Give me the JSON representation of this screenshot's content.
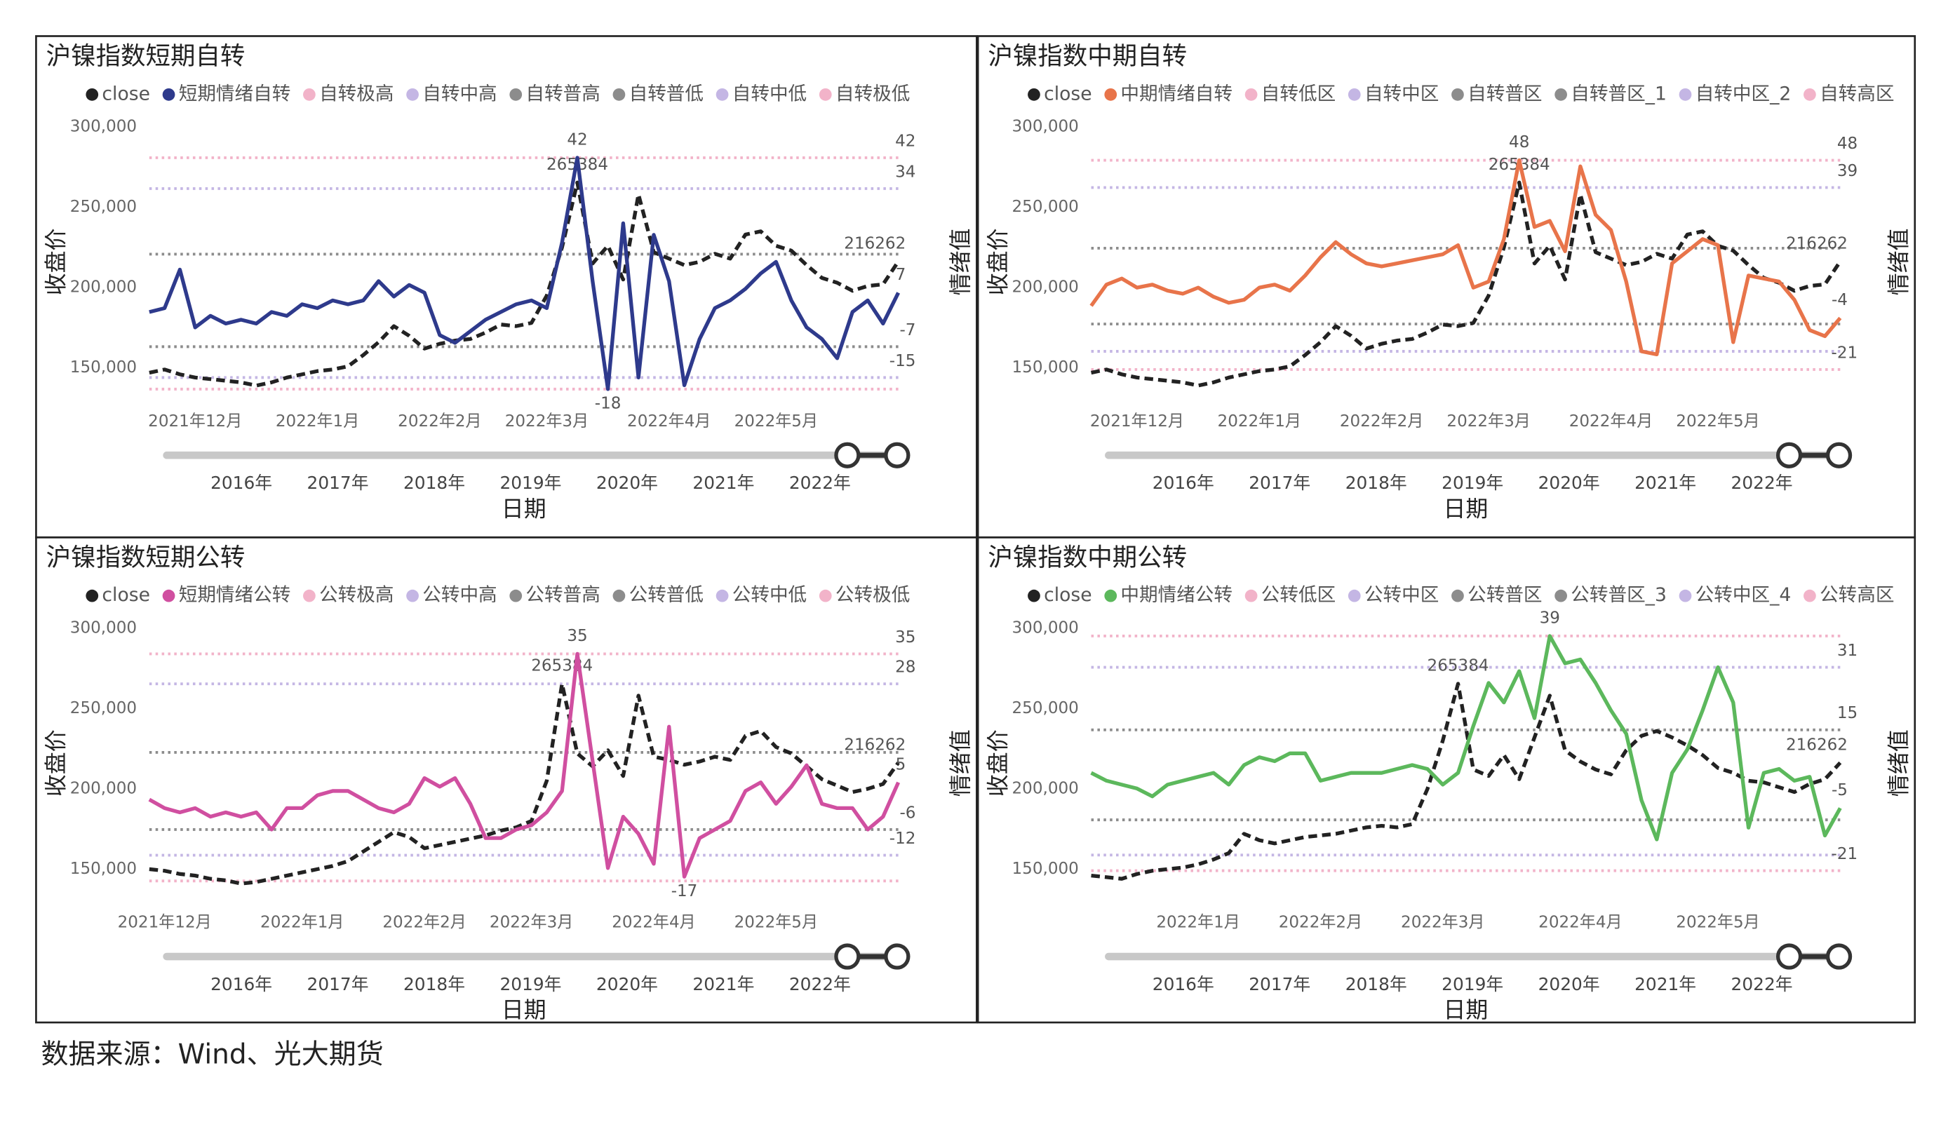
{
  "source": "数据来源：Wind、光大期货",
  "chart_data": [
    {
      "type": "line",
      "title": "沪镍指数短期自转",
      "y_label": "收盘价",
      "y2_label": "情绪值",
      "x_label": "日期",
      "categories": [
        null,
        null,
        null,
        "2021年12月",
        null,
        null,
        null,
        null,
        null,
        null,
        null,
        "2022年1月",
        null,
        null,
        null,
        null,
        null,
        null,
        null,
        "2022年2月",
        null,
        null,
        null,
        null,
        null,
        null,
        "2022年3月",
        null,
        null,
        null,
        null,
        null,
        null,
        null,
        "2022年4月",
        null,
        null,
        null,
        null,
        null,
        null,
        "2022年5月",
        null,
        null,
        null,
        null,
        null,
        null,
        null,
        null
      ],
      "ylim": [
        132000,
        300000
      ],
      "yticks": [
        {
          "value": 150000,
          "label": "150,000"
        },
        {
          "value": 200000,
          "label": "200,000"
        },
        {
          "value": 250000,
          "label": "250,000"
        },
        {
          "value": 300000,
          "label": "300,000"
        }
      ],
      "y2lim": [
        -20,
        50
      ],
      "series": [
        {
          "name": "close",
          "color": "#222222",
          "style": "dashed",
          "axis": "y",
          "label_points": [
            "max",
            "last"
          ],
          "values": [
            147000,
            149000,
            146000,
            144000,
            143000,
            142000,
            141000,
            139000,
            141000,
            144000,
            146000,
            148000,
            149000,
            151000,
            158000,
            166000,
            176000,
            170000,
            162000,
            165000,
            167000,
            168000,
            172000,
            177000,
            176000,
            178000,
            195000,
            225000,
            265384,
            215000,
            226000,
            205000,
            258000,
            222000,
            218000,
            214000,
            216000,
            221000,
            218000,
            233000,
            235000,
            226000,
            223000,
            214000,
            206000,
            203000,
            198000,
            201000,
            202000,
            216262
          ]
        },
        {
          "name": "短期情绪自转",
          "color": "#2e3a8c",
          "style": "solid",
          "axis": "y2",
          "label_points": [
            "max",
            "min",
            "last"
          ],
          "values": [
            2,
            3,
            13,
            -2,
            1,
            -1,
            0,
            -1,
            2,
            1,
            4,
            3,
            5,
            4,
            5,
            10,
            6,
            9,
            7,
            -4,
            -6,
            -3,
            0,
            2,
            4,
            5,
            3,
            20,
            42,
            10,
            -18,
            25,
            -15,
            22,
            10,
            -17,
            -5,
            3,
            5,
            8,
            12,
            15,
            5,
            -2,
            -5,
            -10,
            2,
            5,
            -1,
            7
          ]
        }
      ],
      "reference_lines": [
        {
          "name": "自转极高",
          "color": "#f2b3c9",
          "value": 42,
          "axis": "y2",
          "show_label": true
        },
        {
          "name": "自转中高",
          "color": "#c4b6e4",
          "value": 34,
          "axis": "y2",
          "show_label": true
        },
        {
          "name": "自转普高",
          "color": "#8c8c8c",
          "value": 17,
          "axis": "y2",
          "show_label": false
        },
        {
          "name": "自转普低",
          "color": "#8c8c8c",
          "value": -7,
          "axis": "y2",
          "show_label": true
        },
        {
          "name": "自转中低",
          "color": "#c4b6e4",
          "value": -15,
          "axis": "y2",
          "show_label": true
        },
        {
          "name": "自转极低",
          "color": "#f2b3c9",
          "value": -18,
          "axis": "y2",
          "show_label": false
        }
      ],
      "slider_labels": [
        "2016年",
        "2017年",
        "2018年",
        "2019年",
        "2020年",
        "2021年",
        "2022年"
      ]
    },
    {
      "type": "line",
      "title": "沪镍指数中期自转",
      "y_label": "收盘价",
      "y2_label": "情绪值",
      "x_label": "日期",
      "categories": [
        null,
        null,
        null,
        "2021年12月",
        null,
        null,
        null,
        null,
        null,
        null,
        null,
        "2022年1月",
        null,
        null,
        null,
        null,
        null,
        null,
        null,
        "2022年2月",
        null,
        null,
        null,
        null,
        null,
        null,
        "2022年3月",
        null,
        null,
        null,
        null,
        null,
        null,
        null,
        "2022年4月",
        null,
        null,
        null,
        null,
        null,
        null,
        "2022年5月",
        null,
        null,
        null,
        null,
        null,
        null,
        null,
        null
      ],
      "ylim": [
        132000,
        300000
      ],
      "yticks": [
        {
          "value": 150000,
          "label": "150,000"
        },
        {
          "value": 200000,
          "label": "200,000"
        },
        {
          "value": 250000,
          "label": "250,000"
        },
        {
          "value": 300000,
          "label": "300,000"
        }
      ],
      "y2lim": [
        -30,
        59
      ],
      "series": [
        {
          "name": "close",
          "color": "#222222",
          "style": "dashed",
          "axis": "y",
          "label_points": [
            "max",
            "last"
          ],
          "values": [
            147000,
            149000,
            146000,
            144000,
            143000,
            142000,
            141000,
            139000,
            141000,
            144000,
            146000,
            148000,
            149000,
            151000,
            158000,
            166000,
            176000,
            170000,
            162000,
            165000,
            167000,
            168000,
            172000,
            177000,
            176000,
            178000,
            195000,
            225000,
            265384,
            215000,
            226000,
            205000,
            258000,
            222000,
            218000,
            214000,
            216000,
            221000,
            218000,
            233000,
            235000,
            226000,
            223000,
            214000,
            206000,
            203000,
            198000,
            201000,
            202000,
            216262
          ]
        },
        {
          "name": "中期情绪自转",
          "color": "#e8744a",
          "style": "solid",
          "axis": "y2",
          "label_points": [
            "max",
            "last"
          ],
          "values": [
            0,
            7,
            9,
            6,
            7,
            5,
            4,
            6,
            3,
            1,
            2,
            6,
            7,
            5,
            10,
            16,
            21,
            17,
            14,
            13,
            14,
            15,
            16,
            17,
            20,
            6,
            8,
            22,
            48,
            26,
            28,
            18,
            46,
            30,
            25,
            8,
            -15,
            -16,
            14,
            18,
            22,
            20,
            -12,
            10,
            9,
            8,
            2,
            -8,
            -10,
            -4
          ]
        }
      ],
      "reference_lines": [
        {
          "name": "自转低区",
          "color": "#f2b3c9",
          "value": 48,
          "axis": "y2",
          "show_label": true
        },
        {
          "name": "自转中区",
          "color": "#c4b6e4",
          "value": 39,
          "axis": "y2",
          "show_label": true
        },
        {
          "name": "自转普区",
          "color": "#8c8c8c",
          "value": 19,
          "axis": "y2",
          "show_label": false
        },
        {
          "name": "自转普区_1",
          "color": "#8c8c8c",
          "value": -6,
          "axis": "y2",
          "show_label": false
        },
        {
          "name": "自转中区_2",
          "color": "#c4b6e4",
          "value": -15,
          "axis": "y2",
          "show_label": false
        },
        {
          "name": "自转高区",
          "color": "#f2b3c9",
          "value": -21,
          "axis": "y2",
          "show_label": true
        }
      ],
      "slider_labels": [
        "2016年",
        "2017年",
        "2018年",
        "2019年",
        "2020年",
        "2021年",
        "2022年"
      ]
    },
    {
      "type": "line",
      "title": "沪镍指数短期公转",
      "y_label": "收盘价",
      "y2_label": "情绪值",
      "x_label": "日期",
      "categories": [
        null,
        "2021年12月",
        null,
        null,
        null,
        null,
        null,
        null,
        null,
        null,
        "2022年1月",
        null,
        null,
        null,
        null,
        null,
        null,
        null,
        "2022年2月",
        null,
        null,
        null,
        null,
        null,
        null,
        "2022年3月",
        null,
        null,
        null,
        null,
        null,
        null,
        null,
        "2022年4月",
        null,
        null,
        null,
        null,
        null,
        null,
        null,
        "2022年5月",
        null,
        null,
        null,
        null,
        null,
        null,
        null,
        null
      ],
      "ylim": [
        132000,
        300000
      ],
      "yticks": [
        {
          "value": 150000,
          "label": "150,000"
        },
        {
          "value": 200000,
          "label": "200,000"
        },
        {
          "value": 250000,
          "label": "250,000"
        },
        {
          "value": 300000,
          "label": "300,000"
        }
      ],
      "y2lim": [
        -22,
        41
      ],
      "series": [
        {
          "name": "close",
          "color": "#222222",
          "style": "dashed",
          "axis": "y",
          "label_points": [
            "max",
            "last"
          ],
          "values": [
            150000,
            149000,
            147000,
            146000,
            144000,
            143000,
            141000,
            142000,
            144000,
            146000,
            148000,
            150000,
            152000,
            155000,
            161000,
            167000,
            173000,
            170000,
            163000,
            165000,
            167000,
            169000,
            171000,
            174000,
            176000,
            180000,
            205000,
            265384,
            222000,
            214000,
            224000,
            208000,
            258000,
            220000,
            218000,
            215000,
            217000,
            220000,
            218000,
            233000,
            236000,
            226000,
            222000,
            214000,
            206000,
            202000,
            198000,
            200000,
            203000,
            216262
          ]
        },
        {
          "name": "短期情绪公转",
          "color": "#d04fa0",
          "style": "solid",
          "axis": "y2",
          "label_points": [
            "max",
            "min",
            "last"
          ],
          "values": [
            1,
            -1,
            -2,
            -1,
            -3,
            -2,
            -3,
            -2,
            -6,
            -1,
            -1,
            2,
            3,
            3,
            1,
            -1,
            -2,
            0,
            6,
            4,
            6,
            0,
            -8,
            -8,
            -6,
            -5,
            -2,
            3,
            35,
            10,
            -15,
            -3,
            -7,
            -14,
            18,
            -17,
            -8,
            -6,
            -4,
            3,
            5,
            0,
            4,
            9,
            0,
            -1,
            -1,
            -6,
            -3,
            5
          ]
        }
      ],
      "reference_lines": [
        {
          "name": "公转极高",
          "color": "#f2b3c9",
          "value": 35,
          "axis": "y2",
          "show_label": true
        },
        {
          "name": "公转中高",
          "color": "#c4b6e4",
          "value": 28,
          "axis": "y2",
          "show_label": true
        },
        {
          "name": "公转普高",
          "color": "#8c8c8c",
          "value": 12,
          "axis": "y2",
          "show_label": false
        },
        {
          "name": "公转普低",
          "color": "#8c8c8c",
          "value": -6,
          "axis": "y2",
          "show_label": true
        },
        {
          "name": "公转中低",
          "color": "#c4b6e4",
          "value": -12,
          "axis": "y2",
          "show_label": true
        },
        {
          "name": "公转极低",
          "color": "#f2b3c9",
          "value": -18,
          "axis": "y2",
          "show_label": false
        }
      ],
      "slider_labels": [
        "2016年",
        "2017年",
        "2018年",
        "2019年",
        "2020年",
        "2021年",
        "2022年"
      ]
    },
    {
      "type": "line",
      "title": "沪镍指数中期公转",
      "y_label": "收盘价",
      "y2_label": "情绪值",
      "x_label": "日期",
      "categories": [
        null,
        null,
        null,
        null,
        null,
        null,
        null,
        "2022年1月",
        null,
        null,
        null,
        null,
        null,
        null,
        null,
        "2022年2月",
        null,
        null,
        null,
        null,
        null,
        null,
        null,
        "2022年3月",
        null,
        null,
        null,
        null,
        null,
        null,
        null,
        null,
        "2022年4月",
        null,
        null,
        null,
        null,
        null,
        null,
        null,
        null,
        "2022年5月",
        null,
        null,
        null,
        null,
        null,
        null,
        null,
        null
      ],
      "ylim": [
        132000,
        300000
      ],
      "yticks": [
        {
          "value": 150000,
          "label": "150,000"
        },
        {
          "value": 200000,
          "label": "200,000"
        },
        {
          "value": 250000,
          "label": "250,000"
        },
        {
          "value": 300000,
          "label": "300,000"
        }
      ],
      "y2lim": [
        -28,
        41
      ],
      "series": [
        {
          "name": "close",
          "color": "#222222",
          "style": "dashed",
          "axis": "y",
          "label_points": [
            "max",
            "last"
          ],
          "values": [
            146000,
            145000,
            144000,
            147000,
            149000,
            150000,
            151000,
            153000,
            156000,
            160000,
            172000,
            168000,
            166000,
            168000,
            170000,
            171000,
            172000,
            174000,
            176000,
            177000,
            176000,
            178000,
            200000,
            230000,
            265384,
            212000,
            208000,
            221000,
            206000,
            232000,
            258000,
            224000,
            217000,
            212000,
            209000,
            224000,
            233000,
            236000,
            232000,
            227000,
            221000,
            213000,
            210000,
            205000,
            204000,
            201000,
            198000,
            203000,
            206000,
            216262
          ]
        },
        {
          "name": "中期情绪公转",
          "color": "#5cb85c",
          "style": "solid",
          "axis": "y2",
          "label_points": [
            "max",
            "last"
          ],
          "values": [
            4,
            2,
            1,
            0,
            -2,
            1,
            2,
            3,
            4,
            1,
            6,
            8,
            7,
            9,
            9,
            2,
            3,
            4,
            4,
            4,
            5,
            6,
            5,
            1,
            4,
            16,
            27,
            22,
            30,
            18,
            39,
            32,
            33,
            27,
            20,
            14,
            -3,
            -13,
            4,
            10,
            20,
            31,
            22,
            -10,
            4,
            5,
            2,
            3,
            -12,
            -5
          ]
        }
      ],
      "reference_lines": [
        {
          "name": "公转低区",
          "color": "#f2b3c9",
          "value": 39,
          "axis": "y2",
          "show_label": false
        },
        {
          "name": "公转中区",
          "color": "#c4b6e4",
          "value": 31,
          "axis": "y2",
          "show_label": true
        },
        {
          "name": "公转普区",
          "color": "#8c8c8c",
          "value": 15,
          "axis": "y2",
          "show_label": true
        },
        {
          "name": "公转普区_3",
          "color": "#8c8c8c",
          "value": -8,
          "axis": "y2",
          "show_label": false
        },
        {
          "name": "公转中区_4",
          "color": "#c4b6e4",
          "value": -17,
          "axis": "y2",
          "show_label": false
        },
        {
          "name": "公转高区",
          "color": "#f2b3c9",
          "value": -21,
          "axis": "y2",
          "show_label": true
        }
      ],
      "slider_labels": [
        "2016年",
        "2017年",
        "2018年",
        "2019年",
        "2020年",
        "2021年",
        "2022年"
      ]
    }
  ]
}
